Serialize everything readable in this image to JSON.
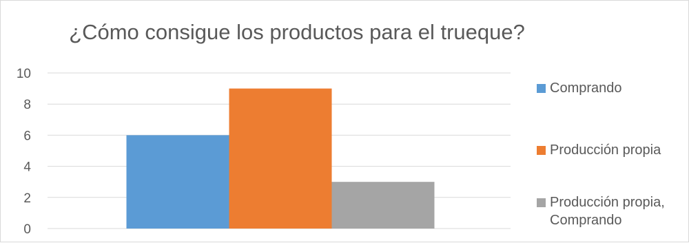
{
  "chart_data": {
    "type": "bar",
    "title": "¿Cómo consigue los productos para el trueque?",
    "categories": [
      ""
    ],
    "series": [
      {
        "name": "Comprando",
        "values": [
          6
        ],
        "color": "#5b9bd5"
      },
      {
        "name": "Producción propia",
        "values": [
          9
        ],
        "color": "#ed7d31"
      },
      {
        "name": "Producción propia, Comprando",
        "values": [
          3
        ],
        "color": "#a5a5a5"
      }
    ],
    "ylim": [
      0,
      10
    ],
    "yticks": [
      0,
      2,
      4,
      6,
      8,
      10
    ],
    "grid": true,
    "legend": "right"
  },
  "colors": {
    "gridline": "#d9d9d9",
    "tick_text": "#595959"
  }
}
